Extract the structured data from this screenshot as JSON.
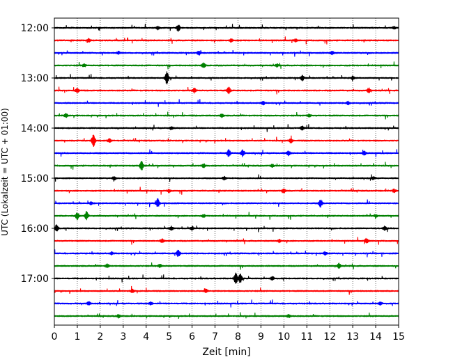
{
  "chart_data": {
    "type": "line",
    "title": "",
    "xlabel": "Zeit  [min]",
    "ylabel": "UTC (Lokalzeit = UTC + 01:00)",
    "xlim": [
      0,
      15
    ],
    "x_ticks": [
      "0",
      "1",
      "2",
      "3",
      "4",
      "5",
      "6",
      "7",
      "8",
      "9",
      "10",
      "11",
      "12",
      "13",
      "14",
      "15"
    ],
    "y_ticks": [
      "12:00",
      "13:00",
      "14:00",
      "15:00",
      "16:00",
      "17:00"
    ],
    "grid": "vertical-dotted",
    "trace_interval_minutes": 15,
    "trace_colors": [
      "#000000",
      "#ff0000",
      "#0000ff",
      "#008000"
    ],
    "series": [
      {
        "start": "12:00",
        "events": [
          [
            5.4,
            0.5
          ],
          [
            4.5,
            0.25
          ],
          [
            14.8,
            0.2
          ]
        ]
      },
      {
        "start": "12:15",
        "events": [
          [
            1.5,
            0.25
          ],
          [
            7.7,
            0.25
          ],
          [
            10.5,
            0.2
          ]
        ]
      },
      {
        "start": "12:30",
        "events": [
          [
            6.3,
            0.3
          ],
          [
            2.8,
            0.2
          ],
          [
            12.1,
            0.25
          ]
        ]
      },
      {
        "start": "12:45",
        "events": [
          [
            6.5,
            0.4
          ],
          [
            1.3,
            0.2
          ],
          [
            9.7,
            0.2
          ]
        ]
      },
      {
        "start": "13:00",
        "events": [
          [
            4.9,
            1.0
          ],
          [
            10.8,
            0.4
          ],
          [
            13.0,
            0.25
          ]
        ]
      },
      {
        "start": "13:15",
        "events": [
          [
            1.0,
            0.35
          ],
          [
            6.1,
            0.35
          ],
          [
            7.6,
            0.5
          ],
          [
            13.7,
            0.35
          ]
        ]
      },
      {
        "start": "13:30",
        "events": [
          [
            9.1,
            0.25
          ],
          [
            12.8,
            0.25
          ]
        ]
      },
      {
        "start": "13:45",
        "events": [
          [
            0.5,
            0.3
          ],
          [
            7.3,
            0.25
          ],
          [
            11.1,
            0.2
          ]
        ]
      },
      {
        "start": "14:00",
        "events": [
          [
            5.1,
            0.25
          ],
          [
            10.8,
            0.3
          ]
        ]
      },
      {
        "start": "14:15",
        "events": [
          [
            1.7,
            1.1
          ],
          [
            2.4,
            0.3
          ],
          [
            10.3,
            0.35
          ]
        ]
      },
      {
        "start": "14:30",
        "events": [
          [
            7.6,
            0.55
          ],
          [
            8.2,
            0.5
          ],
          [
            10.2,
            0.35
          ],
          [
            13.5,
            0.3
          ]
        ]
      },
      {
        "start": "14:45",
        "events": [
          [
            3.8,
            0.75
          ],
          [
            6.5,
            0.3
          ],
          [
            9.5,
            0.2
          ]
        ]
      },
      {
        "start": "15:00",
        "events": [
          [
            2.6,
            0.25
          ],
          [
            7.4,
            0.25
          ],
          [
            13.9,
            0.25
          ]
        ]
      },
      {
        "start": "15:15",
        "events": [
          [
            5.0,
            0.25
          ],
          [
            10.0,
            0.3
          ],
          [
            14.8,
            0.25
          ]
        ]
      },
      {
        "start": "15:30",
        "events": [
          [
            4.5,
            0.7
          ],
          [
            11.6,
            0.6
          ],
          [
            1.6,
            0.2
          ]
        ]
      },
      {
        "start": "15:45",
        "events": [
          [
            1.0,
            0.55
          ],
          [
            1.4,
            0.65
          ],
          [
            6.5,
            0.2
          ],
          [
            14.0,
            0.2
          ]
        ]
      },
      {
        "start": "16:00",
        "events": [
          [
            0.1,
            0.55
          ],
          [
            5.1,
            0.3
          ],
          [
            6.0,
            0.3
          ],
          [
            14.4,
            0.3
          ]
        ]
      },
      {
        "start": "16:15",
        "events": [
          [
            4.7,
            0.3
          ],
          [
            9.8,
            0.25
          ],
          [
            13.6,
            0.35
          ]
        ]
      },
      {
        "start": "16:30",
        "events": [
          [
            5.4,
            0.55
          ],
          [
            11.8,
            0.25
          ],
          [
            2.5,
            0.2
          ]
        ]
      },
      {
        "start": "16:45",
        "events": [
          [
            2.3,
            0.3
          ],
          [
            4.6,
            0.25
          ],
          [
            12.4,
            0.4
          ]
        ]
      },
      {
        "start": "17:00",
        "events": [
          [
            7.9,
            0.9
          ],
          [
            8.1,
            0.7
          ],
          [
            9.5,
            0.25
          ]
        ]
      },
      {
        "start": "17:15",
        "events": [
          [
            3.4,
            0.25
          ],
          [
            6.6,
            0.25
          ]
        ]
      },
      {
        "start": "17:30",
        "events": [
          [
            1.5,
            0.25
          ],
          [
            4.2,
            0.25
          ],
          [
            14.2,
            0.2
          ]
        ]
      },
      {
        "start": "17:45",
        "events": [
          [
            2.8,
            0.25
          ],
          [
            10.2,
            0.25
          ]
        ]
      }
    ]
  }
}
